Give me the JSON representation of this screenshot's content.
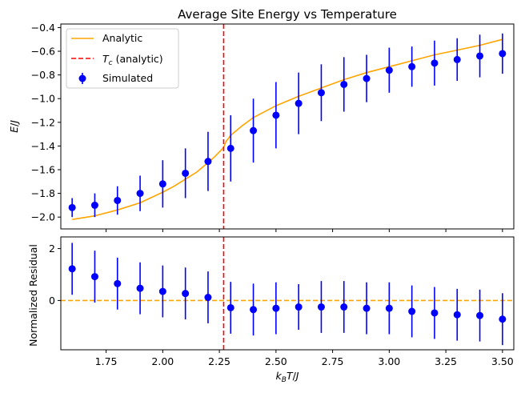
{
  "chart_data": [
    {
      "type": "line",
      "title": "Average Site Energy vs Temperature",
      "xlabel": "k_BT/J",
      "ylabel": "E/J",
      "xlim": [
        1.55,
        3.55
      ],
      "ylim": [
        -2.1,
        -0.37
      ],
      "yticks": [
        -2.0,
        -1.8,
        -1.6,
        -1.4,
        -1.2,
        -1.0,
        -0.8,
        -0.6,
        -0.4
      ],
      "ytick_labels": [
        "−2.0",
        "−1.8",
        "−1.6",
        "−1.4",
        "−1.2",
        "−1.0",
        "−0.8",
        "−0.6",
        "−0.4"
      ],
      "grid": false,
      "legend_placement": "top-left",
      "legend": [
        {
          "label": "Analytic",
          "kind": "line",
          "color": "#ffa500"
        },
        {
          "label": "T_c (analytic)",
          "kind": "dashed",
          "color": "#ff0000"
        },
        {
          "label": "Simulated",
          "kind": "errorbar",
          "color": "#0000ff"
        }
      ],
      "critical_temperature": 2.269,
      "series": [
        {
          "name": "Analytic",
          "color": "#ffa500",
          "x": [
            1.6,
            1.7,
            1.8,
            1.9,
            2.0,
            2.05,
            2.1,
            2.15,
            2.2,
            2.23,
            2.26,
            2.269,
            2.28,
            2.3,
            2.35,
            2.4,
            2.5,
            2.6,
            2.7,
            2.8,
            2.9,
            3.0,
            3.1,
            3.2,
            3.3,
            3.4,
            3.5
          ],
          "y": [
            -2.02,
            -1.99,
            -1.94,
            -1.88,
            -1.79,
            -1.74,
            -1.68,
            -1.62,
            -1.54,
            -1.49,
            -1.43,
            -1.41,
            -1.36,
            -1.31,
            -1.23,
            -1.16,
            -1.06,
            -0.98,
            -0.91,
            -0.84,
            -0.78,
            -0.73,
            -0.68,
            -0.63,
            -0.59,
            -0.55,
            -0.5
          ]
        },
        {
          "name": "Simulated",
          "color": "#0000ff",
          "x": [
            1.6,
            1.7,
            1.8,
            1.9,
            2.0,
            2.1,
            2.2,
            2.3,
            2.4,
            2.5,
            2.6,
            2.7,
            2.8,
            2.9,
            3.0,
            3.1,
            3.2,
            3.3,
            3.4,
            3.5
          ],
          "y": [
            -1.92,
            -1.9,
            -1.86,
            -1.8,
            -1.72,
            -1.63,
            -1.53,
            -1.42,
            -1.27,
            -1.14,
            -1.04,
            -0.95,
            -0.88,
            -0.83,
            -0.76,
            -0.73,
            -0.7,
            -0.67,
            -0.64,
            -0.62
          ],
          "err": [
            0.08,
            0.1,
            0.12,
            0.15,
            0.2,
            0.21,
            0.25,
            0.28,
            0.27,
            0.28,
            0.26,
            0.24,
            0.23,
            0.2,
            0.19,
            0.17,
            0.19,
            0.18,
            0.18,
            0.17
          ]
        }
      ]
    },
    {
      "type": "scatter",
      "title": "",
      "xlabel": "k_BT/J",
      "ylabel": "Normalized Residual",
      "xlim": [
        1.55,
        3.55
      ],
      "ylim": [
        -1.9,
        2.45
      ],
      "xticks": [
        1.75,
        2.0,
        2.25,
        2.5,
        2.75,
        3.0,
        3.25,
        3.5
      ],
      "xtick_labels": [
        "1.75",
        "2.00",
        "2.25",
        "2.50",
        "2.75",
        "3.00",
        "3.25",
        "3.50"
      ],
      "yticks": [
        0,
        2
      ],
      "ytick_labels": [
        "0",
        "2"
      ],
      "grid": false,
      "zero_line_color": "#ffa500",
      "series": [
        {
          "name": "Residual",
          "color": "#0000ff",
          "x": [
            1.6,
            1.7,
            1.8,
            1.9,
            2.0,
            2.1,
            2.2,
            2.3,
            2.4,
            2.5,
            2.6,
            2.7,
            2.8,
            2.9,
            3.0,
            3.1,
            3.2,
            3.3,
            3.4,
            3.5
          ],
          "y": [
            1.22,
            0.92,
            0.65,
            0.47,
            0.35,
            0.27,
            0.12,
            -0.28,
            -0.35,
            -0.3,
            -0.25,
            -0.25,
            -0.25,
            -0.3,
            -0.3,
            -0.42,
            -0.48,
            -0.55,
            -0.58,
            -0.72
          ],
          "err": [
            1.0,
            1.0,
            1.0,
            1.0,
            1.0,
            1.0,
            1.0,
            1.0,
            1.0,
            1.0,
            0.88,
            1.0,
            1.0,
            1.0,
            1.0,
            1.0,
            1.0,
            1.0,
            1.0,
            1.0
          ]
        }
      ]
    }
  ]
}
